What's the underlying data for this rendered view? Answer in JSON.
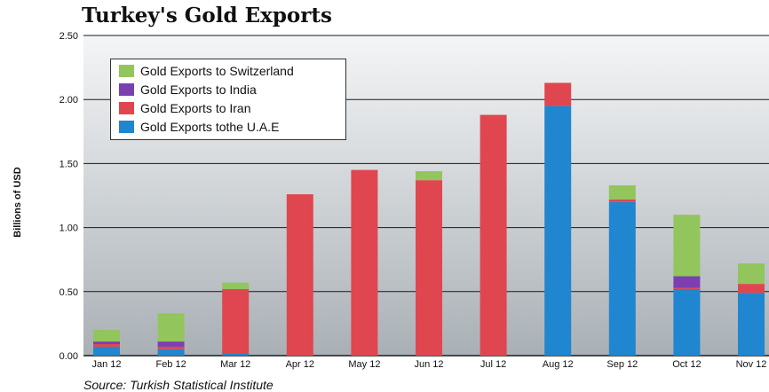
{
  "chart_data": {
    "type": "bar",
    "stacked": true,
    "title": "Turkey's Gold Exports",
    "ylabel": "Billions of USD",
    "source": "Source: Turkish Statistical Institute",
    "ylim": [
      0,
      2.5
    ],
    "yticks": [
      "0.00",
      "0.50",
      "1.00",
      "1.50",
      "2.00",
      "2.50"
    ],
    "grid": true,
    "legend_position": "top-left",
    "categories": [
      "Jan 12",
      "Feb 12",
      "Mar 12",
      "Apr 12",
      "May 12",
      "Jun 12",
      "Jul 12",
      "Aug 12",
      "Sep 12",
      "Oct 12",
      "Nov 12"
    ],
    "series": [
      {
        "name": "Gold Exports tothe U.A.E",
        "color": "#1f86cf",
        "values": [
          0.07,
          0.05,
          0.02,
          0.0,
          0.0,
          0.0,
          0.0,
          1.95,
          1.2,
          0.52,
          0.49
        ]
      },
      {
        "name": "Gold Exports to Iran",
        "color": "#e0464f",
        "values": [
          0.02,
          0.02,
          0.5,
          1.26,
          1.45,
          1.37,
          1.88,
          0.18,
          0.02,
          0.01,
          0.07
        ]
      },
      {
        "name": "Gold Exports to India",
        "color": "#7b3fb0",
        "values": [
          0.02,
          0.04,
          0.0,
          0.0,
          0.0,
          0.0,
          0.0,
          0.0,
          0.0,
          0.09,
          0.0
        ]
      },
      {
        "name": "Gold Exports to Switzerland",
        "color": "#92c55c",
        "values": [
          0.09,
          0.22,
          0.05,
          0.0,
          0.0,
          0.07,
          0.0,
          0.0,
          0.11,
          0.48,
          0.16
        ]
      }
    ],
    "legend_order": [
      3,
      2,
      1,
      0
    ]
  }
}
